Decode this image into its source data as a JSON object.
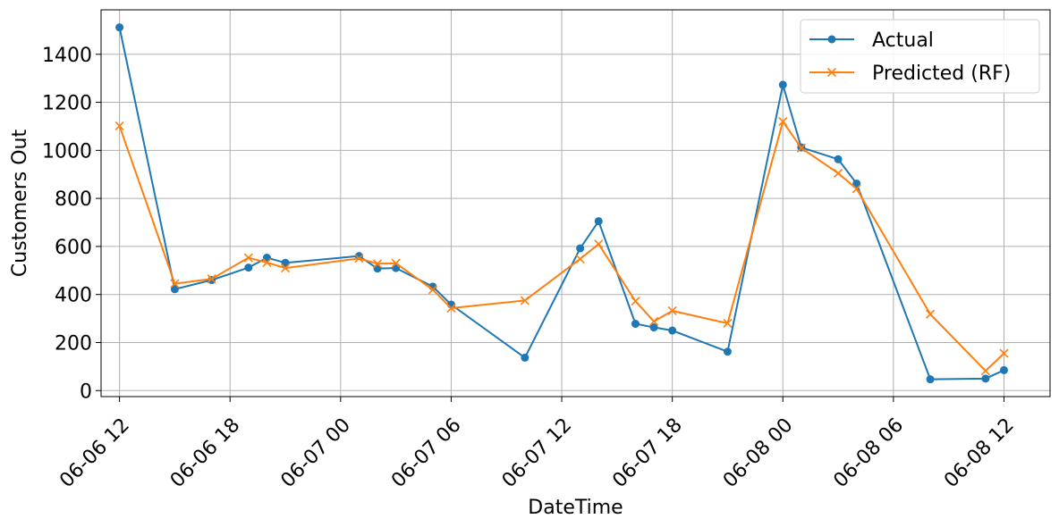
{
  "chart_data": {
    "type": "line",
    "xlabel": "DateTime",
    "ylabel": "Customers Out",
    "x_ticks": [
      "06-06 12",
      "06-06 18",
      "06-07 00",
      "06-07 06",
      "06-07 12",
      "06-07 18",
      "06-08 00",
      "06-08 06",
      "06-08 12"
    ],
    "y_ticks": [
      0,
      200,
      400,
      600,
      800,
      1000,
      1200,
      1400
    ],
    "xlim": [
      "2025-06-06 11:00",
      "2025-06-08 14:30"
    ],
    "ylim": [
      -25,
      1585
    ],
    "grid": true,
    "legend_position": "top-right",
    "series": [
      {
        "name": "Actual",
        "color": "#1f77b4",
        "marker": "circle",
        "points": [
          [
            "2025-06-06 12:00",
            1512
          ],
          [
            "2025-06-06 15:00",
            422
          ],
          [
            "2025-06-06 17:00",
            460
          ],
          [
            "2025-06-06 19:00",
            512
          ],
          [
            "2025-06-06 20:00",
            553
          ],
          [
            "2025-06-06 21:00",
            532
          ],
          [
            "2025-06-07 01:00",
            560
          ],
          [
            "2025-06-07 02:00",
            508
          ],
          [
            "2025-06-07 03:00",
            510
          ],
          [
            "2025-06-07 05:00",
            433
          ],
          [
            "2025-06-07 06:00",
            358
          ],
          [
            "2025-06-07 10:00",
            137
          ],
          [
            "2025-06-07 13:00",
            592
          ],
          [
            "2025-06-07 14:00",
            705
          ],
          [
            "2025-06-07 16:00",
            278
          ],
          [
            "2025-06-07 17:00",
            263
          ],
          [
            "2025-06-07 18:00",
            250
          ],
          [
            "2025-06-07 21:00",
            162
          ],
          [
            "2025-06-08 00:00",
            1273
          ],
          [
            "2025-06-08 01:00",
            1012
          ],
          [
            "2025-06-08 03:00",
            963
          ],
          [
            "2025-06-08 04:00",
            862
          ],
          [
            "2025-06-08 08:00",
            47
          ],
          [
            "2025-06-08 11:00",
            50
          ],
          [
            "2025-06-08 12:00",
            85
          ]
        ]
      },
      {
        "name": "Predicted (RF)",
        "color": "#ff7f0e",
        "marker": "x",
        "points": [
          [
            "2025-06-06 12:00",
            1102
          ],
          [
            "2025-06-06 15:00",
            445
          ],
          [
            "2025-06-06 17:00",
            465
          ],
          [
            "2025-06-06 19:00",
            553
          ],
          [
            "2025-06-06 20:00",
            533
          ],
          [
            "2025-06-06 21:00",
            510
          ],
          [
            "2025-06-07 01:00",
            550
          ],
          [
            "2025-06-07 02:00",
            528
          ],
          [
            "2025-06-07 03:00",
            530
          ],
          [
            "2025-06-07 05:00",
            420
          ],
          [
            "2025-06-07 06:00",
            343
          ],
          [
            "2025-06-07 10:00",
            375
          ],
          [
            "2025-06-07 13:00",
            548
          ],
          [
            "2025-06-07 14:00",
            610
          ],
          [
            "2025-06-07 16:00",
            372
          ],
          [
            "2025-06-07 17:00",
            288
          ],
          [
            "2025-06-07 18:00",
            332
          ],
          [
            "2025-06-07 21:00",
            280
          ],
          [
            "2025-06-08 00:00",
            1120
          ],
          [
            "2025-06-08 01:00",
            1010
          ],
          [
            "2025-06-08 03:00",
            905
          ],
          [
            "2025-06-08 04:00",
            840
          ],
          [
            "2025-06-08 08:00",
            318
          ],
          [
            "2025-06-08 11:00",
            82
          ],
          [
            "2025-06-08 12:00",
            155
          ]
        ]
      }
    ]
  }
}
